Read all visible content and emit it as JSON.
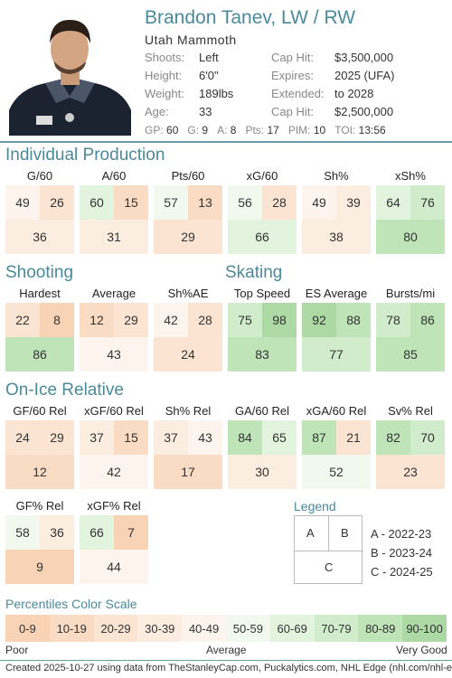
{
  "player": {
    "name": "Brandon Tanev, LW / RW",
    "team": "Utah Mammoth",
    "photo_icon": "player-headshot"
  },
  "info_left": [
    {
      "key": "Shoots:",
      "value": "Left"
    },
    {
      "key": "Height:",
      "value": "6'0\""
    },
    {
      "key": "Weight:",
      "value": "189lbs"
    },
    {
      "key": "Age:",
      "value": "33"
    }
  ],
  "info_right": [
    {
      "key": "Cap Hit:",
      "value": "$3,500,000"
    },
    {
      "key": "Expires:",
      "value": "2025 (UFA)"
    },
    {
      "key": "Extended:",
      "value": "to 2028"
    },
    {
      "key": "Cap Hit:",
      "value": "$2,500,000"
    }
  ],
  "statline": [
    {
      "key": "GP:",
      "value": "60"
    },
    {
      "key": "G:",
      "value": "9"
    },
    {
      "key": "A:",
      "value": "8"
    },
    {
      "key": "Pts:",
      "value": "17"
    },
    {
      "key": "PIM:",
      "value": "10"
    },
    {
      "key": "TOI:",
      "value": "13:56"
    }
  ],
  "sections": {
    "individual": "Individual Production",
    "shooting": "Shooting",
    "skating": "Skating",
    "onice": "On-Ice Relative"
  },
  "metrics": {
    "individual": [
      {
        "label": "G/60",
        "a": 49,
        "b": 26,
        "c": 36
      },
      {
        "label": "A/60",
        "a": 60,
        "b": 15,
        "c": 31
      },
      {
        "label": "Pts/60",
        "a": 57,
        "b": 13,
        "c": 29
      },
      {
        "label": "xG/60",
        "a": 56,
        "b": 28,
        "c": 66
      },
      {
        "label": "Sh%",
        "a": 49,
        "b": 39,
        "c": 38
      },
      {
        "label": "xSh%",
        "a": 64,
        "b": 76,
        "c": 80
      }
    ],
    "shooting": [
      {
        "label": "Hardest",
        "a": 22,
        "b": 8,
        "c": 86
      },
      {
        "label": "Average",
        "a": 12,
        "b": 29,
        "c": 43
      },
      {
        "label": "Sh%AE",
        "a": 42,
        "b": 28,
        "c": 24
      }
    ],
    "skating": [
      {
        "label": "Top Speed",
        "a": 75,
        "b": 98,
        "c": 83
      },
      {
        "label": "ES Average",
        "a": 92,
        "b": 88,
        "c": 77
      },
      {
        "label": "Bursts/mi",
        "a": 78,
        "b": 86,
        "c": 85
      }
    ],
    "onice1": [
      {
        "label": "GF/60 Rel",
        "a": 24,
        "b": 29,
        "c": 12
      },
      {
        "label": "xGF/60 Rel",
        "a": 37,
        "b": 15,
        "c": 42
      },
      {
        "label": "Sh% Rel",
        "a": 37,
        "b": 43,
        "c": 17
      },
      {
        "label": "GA/60 Rel",
        "a": 84,
        "b": 65,
        "c": 30
      },
      {
        "label": "xGA/60 Rel",
        "a": 87,
        "b": 21,
        "c": 52
      },
      {
        "label": "Sv% Rel",
        "a": 82,
        "b": 70,
        "c": 23
      }
    ],
    "onice2": [
      {
        "label": "GF% Rel",
        "a": 58,
        "b": 36,
        "c": 9
      },
      {
        "label": "xGF% Rel",
        "a": 66,
        "b": 7,
        "c": 44
      }
    ]
  },
  "legend": {
    "title": "Legend",
    "cell_a": "A",
    "cell_b": "B",
    "cell_c": "C",
    "line_a": "A - 2022-23",
    "line_b": "B - 2023-24",
    "line_c": "C - 2024-25"
  },
  "scale": {
    "title": "Percentiles Color Scale",
    "bins": [
      "0-9",
      "10-19",
      "20-29",
      "30-39",
      "40-49",
      "50-59",
      "60-69",
      "70-79",
      "80-89",
      "90-100"
    ],
    "colors": [
      "#f8d3b5",
      "#fadbc3",
      "#fbe4d2",
      "#fcede1",
      "#fdf4ed",
      "#f1f9ef",
      "#e2f3de",
      "#d0ecca",
      "#bee4b7",
      "#add9a5"
    ],
    "poor": "Poor",
    "average": "Average",
    "very_good": "Very Good"
  },
  "footer": "Created 2025-10-27 using data from TheStanleyCap.com, Puckalytics.com, NHL Edge (nhl.com/nhl-edge)."
}
